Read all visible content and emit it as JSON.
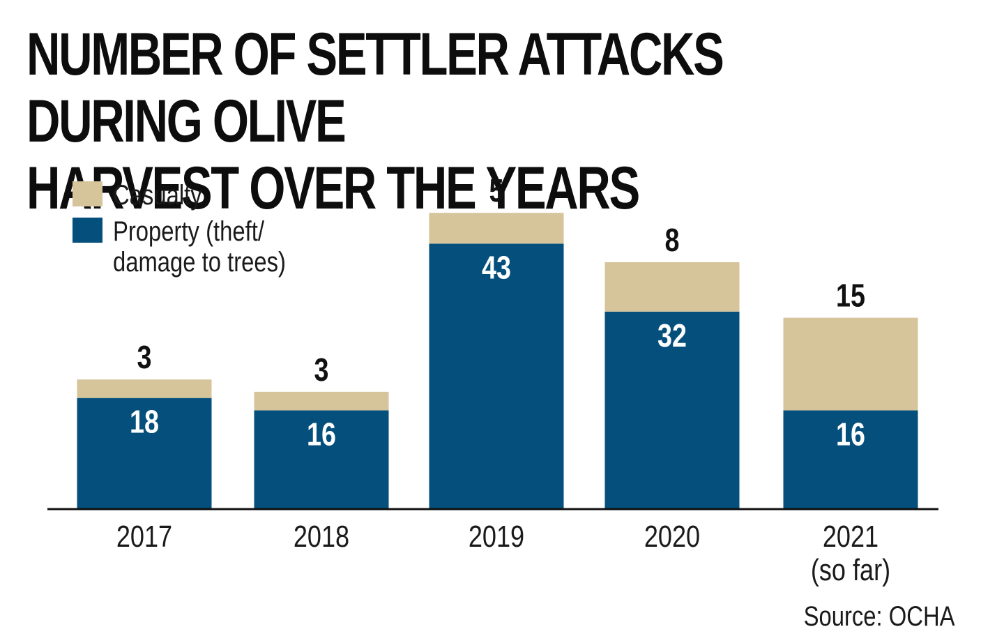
{
  "chart_data": {
    "type": "bar",
    "stacked": true,
    "title": "NUMBER OF SETTLER ATTACKS DURING OLIVE\nHARVEST OVER THE YEARS",
    "categories": [
      "2017",
      "2018",
      "2019",
      "2020",
      "2021\n(so far)"
    ],
    "series": [
      {
        "name": "Property (theft/\ndamage to trees)",
        "values": [
          18,
          16,
          43,
          32,
          16
        ],
        "color": "#044f7c"
      },
      {
        "name": "Casualty",
        "values": [
          3,
          3,
          5,
          8,
          15
        ],
        "color": "#d6c49a"
      }
    ],
    "legend_position": "top-left",
    "grid": false,
    "ylim": [
      0,
      52
    ],
    "source": "Source: OCHA"
  }
}
